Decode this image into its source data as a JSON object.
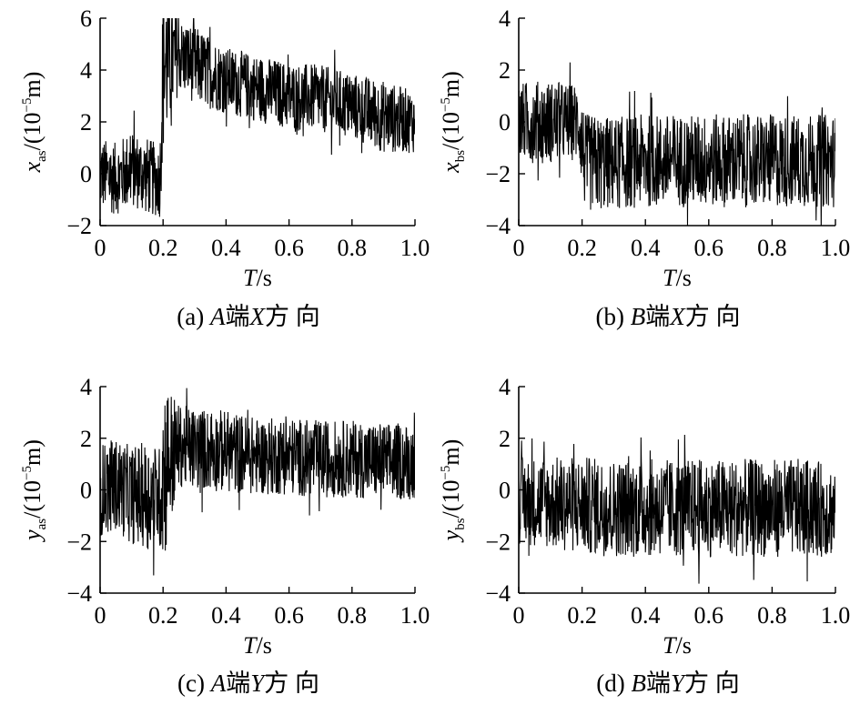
{
  "chart_data": [
    {
      "id": "a",
      "type": "line",
      "caption": {
        "tag": "(a)",
        "end": "A",
        "end_suffix": "端",
        "dir": "X",
        "dir_suffix": "方 向"
      },
      "xlabel": {
        "var": "T",
        "unit": "/s"
      },
      "ylabel": {
        "var": "x",
        "sub": "as",
        "unit_open": "/(10",
        "unit_exp": "−5",
        "unit_close": "m)"
      },
      "xlim": [
        0,
        1.0
      ],
      "ylim": [
        -2,
        6
      ],
      "xticks": [
        "0",
        "0.2",
        "0.4",
        "0.6",
        "0.8",
        "1.0"
      ],
      "yticks": [
        "−2",
        "0",
        "2",
        "4",
        "6"
      ],
      "series": [
        {
          "t": [
            0,
            0.05,
            0.1,
            0.15,
            0.19,
            0.2,
            0.25,
            0.3,
            0.4,
            0.5,
            0.6,
            0.7,
            0.8,
            0.9,
            1.0
          ],
          "mean": [
            0.0,
            -0.2,
            0.2,
            -0.1,
            -0.3,
            4.2,
            4.6,
            4.2,
            3.6,
            3.3,
            3.0,
            2.9,
            2.6,
            2.2,
            2.0
          ],
          "amp": [
            1.4,
            1.4,
            1.5,
            1.5,
            1.4,
            3.5,
            1.4,
            1.5,
            1.3,
            1.3,
            1.3,
            1.3,
            1.3,
            1.4,
            1.2
          ]
        }
      ]
    },
    {
      "id": "b",
      "type": "line",
      "caption": {
        "tag": "(b)",
        "end": "B",
        "end_suffix": "端",
        "dir": "X",
        "dir_suffix": "方 向"
      },
      "xlabel": {
        "var": "T",
        "unit": "/s"
      },
      "ylabel": {
        "var": "x",
        "sub": "bs",
        "unit_open": "/(10",
        "unit_exp": "−5",
        "unit_close": "m)"
      },
      "xlim": [
        0,
        1.0
      ],
      "ylim": [
        -4,
        4
      ],
      "xticks": [
        "0",
        "0.2",
        "0.4",
        "0.6",
        "0.8",
        "1.0"
      ],
      "yticks": [
        "−4",
        "−2",
        "0",
        "2",
        "4"
      ],
      "series": [
        {
          "t": [
            0,
            0.05,
            0.1,
            0.15,
            0.19,
            0.21,
            0.3,
            0.4,
            0.5,
            0.6,
            0.7,
            0.8,
            0.9,
            1.0
          ],
          "mean": [
            0.0,
            0.0,
            0.0,
            0.0,
            0.0,
            -1.6,
            -1.6,
            -1.5,
            -1.5,
            -1.5,
            -1.5,
            -1.5,
            -1.5,
            -1.5
          ],
          "amp": [
            1.5,
            1.6,
            1.6,
            1.5,
            1.5,
            1.9,
            1.8,
            1.8,
            1.8,
            1.8,
            1.8,
            1.8,
            1.8,
            1.8
          ]
        }
      ]
    },
    {
      "id": "c",
      "type": "line",
      "caption": {
        "tag": "(c)",
        "end": "A",
        "end_suffix": "端",
        "dir": "Y",
        "dir_suffix": "方 向"
      },
      "xlabel": {
        "var": "T",
        "unit": "/s"
      },
      "ylabel": {
        "var": "y",
        "sub": "as",
        "unit_open": "/(10",
        "unit_exp": "−5",
        "unit_close": "m)"
      },
      "xlim": [
        0,
        1.0
      ],
      "ylim": [
        -4,
        4
      ],
      "xticks": [
        "0",
        "0.2",
        "0.4",
        "0.6",
        "0.8",
        "1.0"
      ],
      "yticks": [
        "−4",
        "−2",
        "0",
        "2",
        "4"
      ],
      "series": [
        {
          "t": [
            0,
            0.05,
            0.1,
            0.15,
            0.19,
            0.2,
            0.25,
            0.3,
            0.4,
            0.5,
            0.6,
            0.7,
            0.8,
            0.9,
            1.0
          ],
          "mean": [
            0.0,
            0.2,
            -0.2,
            -0.2,
            -0.3,
            0.8,
            1.7,
            1.6,
            1.5,
            1.3,
            1.3,
            1.2,
            1.2,
            1.1,
            1.1
          ],
          "amp": [
            1.8,
            1.8,
            1.9,
            2.1,
            2.0,
            3.8,
            1.6,
            1.6,
            1.6,
            1.5,
            1.5,
            1.5,
            1.5,
            1.5,
            1.5
          ]
        }
      ]
    },
    {
      "id": "d",
      "type": "line",
      "caption": {
        "tag": "(d)",
        "end": "B",
        "end_suffix": "端",
        "dir": "Y",
        "dir_suffix": "方 向"
      },
      "xlabel": {
        "var": "T",
        "unit": "/s"
      },
      "ylabel": {
        "var": "y",
        "sub": "bs",
        "unit_open": "/(10",
        "unit_exp": "−5",
        "unit_close": "m)"
      },
      "xlim": [
        0,
        1.0
      ],
      "ylim": [
        -4,
        4
      ],
      "xticks": [
        "0",
        "0.2",
        "0.4",
        "0.6",
        "0.8",
        "1.0"
      ],
      "yticks": [
        "−4",
        "−2",
        "0",
        "2",
        "4"
      ],
      "series": [
        {
          "t": [
            0,
            0.1,
            0.2,
            0.3,
            0.4,
            0.5,
            0.6,
            0.7,
            0.8,
            0.9,
            1.0
          ],
          "mean": [
            -0.4,
            -0.5,
            -0.6,
            -0.7,
            -0.7,
            -0.7,
            -0.7,
            -0.7,
            -0.7,
            -0.7,
            -0.8
          ],
          "amp": [
            1.7,
            1.8,
            1.9,
            1.9,
            1.9,
            1.9,
            1.9,
            1.9,
            1.9,
            1.9,
            1.8
          ]
        }
      ]
    }
  ]
}
